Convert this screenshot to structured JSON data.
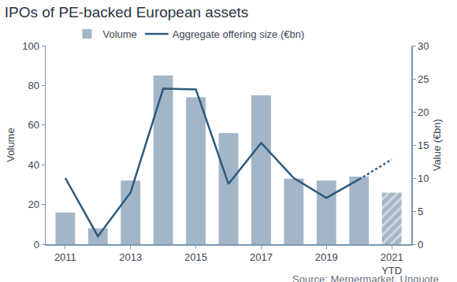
{
  "chart_data": {
    "type": "bar_line",
    "title": "IPOs of PE-backed European assets",
    "annotations": [
      "Source: Mergermarket, Unquote"
    ],
    "categories": [
      "2011",
      null,
      "2013",
      null,
      "2015",
      null,
      "2017",
      null,
      "2019",
      null,
      "2021 YTD"
    ],
    "series": [
      {
        "name": "Volume",
        "type": "bar",
        "color": "#a3b6c8",
        "axis": "y",
        "values": [
          16,
          8,
          32,
          85,
          74,
          56,
          75,
          33,
          32,
          34,
          26
        ]
      },
      {
        "name": "Aggregate offering size (€bn)",
        "type": "line",
        "color": "#2f5a7e",
        "axis": "y2",
        "values": [
          10,
          1.2,
          7.8,
          23.5,
          23.4,
          9.1,
          15.3,
          10,
          7,
          9.8,
          12.8
        ]
      }
    ],
    "ylabel": "Volume",
    "y2label": "Value (€bn)",
    "ylim": [
      0,
      100
    ],
    "yticks": [
      0,
      20,
      40,
      60,
      80,
      100
    ],
    "y2lim": [
      0,
      30
    ],
    "y2ticks": [
      0,
      5,
      10,
      15,
      20,
      25,
      30
    ],
    "legend": "top",
    "grid": false
  }
}
